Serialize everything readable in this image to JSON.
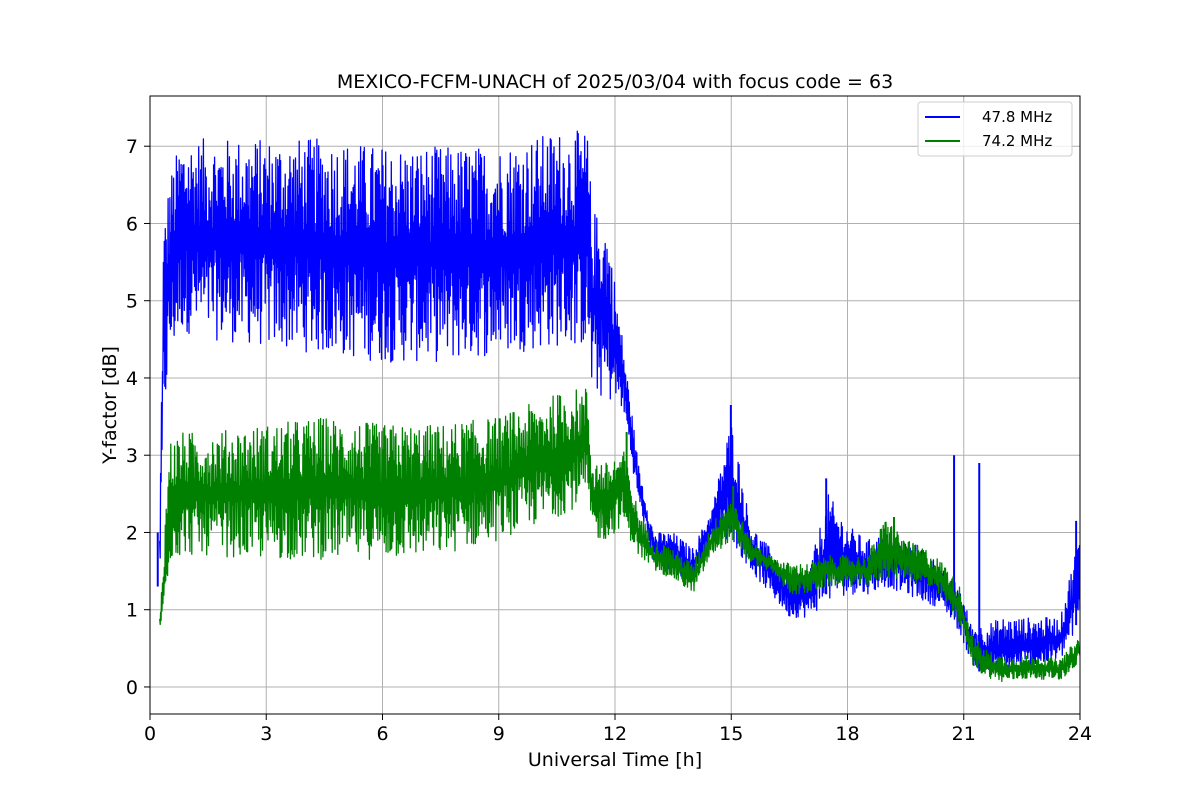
{
  "chart_data": {
    "type": "line",
    "title": "MEXICO-FCFM-UNACH of 2025/03/04 with focus code = 63",
    "xlabel": "Universal Time [h]",
    "ylabel": "Y-factor [dB]",
    "xlim": [
      0,
      24
    ],
    "ylim": [
      -0.35,
      7.65
    ],
    "xticks": [
      0,
      3,
      6,
      9,
      12,
      15,
      18,
      21,
      24
    ],
    "yticks": [
      0,
      1,
      2,
      3,
      4,
      5,
      6,
      7
    ],
    "grid": true,
    "legend_position": "top-right",
    "series": [
      {
        "name": "47.8 MHz",
        "color": "#0000ff",
        "lower": [
          [
            0.25,
            1.3
          ],
          [
            0.35,
            3.3
          ],
          [
            0.5,
            4.2
          ],
          [
            0.8,
            4.6
          ],
          [
            1.5,
            4.5
          ],
          [
            3,
            4.4
          ],
          [
            4.5,
            4.3
          ],
          [
            6,
            4.2
          ],
          [
            7.5,
            4.2
          ],
          [
            9,
            4.3
          ],
          [
            10.5,
            4.4
          ],
          [
            11.3,
            4.4
          ],
          [
            11.4,
            3.8
          ],
          [
            11.8,
            3.7
          ],
          [
            12.2,
            3.6
          ],
          [
            12.6,
            2.4
          ],
          [
            13,
            1.6
          ],
          [
            13.5,
            1.5
          ],
          [
            14,
            1.3
          ],
          [
            14.5,
            1.9
          ],
          [
            15,
            1.9
          ],
          [
            15.5,
            1.5
          ],
          [
            16,
            1.2
          ],
          [
            16.5,
            0.9
          ],
          [
            17,
            0.9
          ],
          [
            17.5,
            1.1
          ],
          [
            18,
            1.2
          ],
          [
            18.5,
            1.2
          ],
          [
            19,
            1.3
          ],
          [
            19.5,
            1.2
          ],
          [
            20,
            1.1
          ],
          [
            20.5,
            1.0
          ],
          [
            20.9,
            0.7
          ],
          [
            21.2,
            0.3
          ],
          [
            21.5,
            0.15
          ],
          [
            22,
            0.1
          ],
          [
            22.5,
            0.2
          ],
          [
            23,
            0.25
          ],
          [
            23.5,
            0.35
          ],
          [
            23.8,
            0.6
          ],
          [
            24,
            0.9
          ]
        ],
        "upper": [
          [
            0.25,
            2.0
          ],
          [
            0.35,
            6.0
          ],
          [
            0.5,
            6.6
          ],
          [
            0.8,
            7.1
          ],
          [
            1.5,
            7.1
          ],
          [
            3,
            7.1
          ],
          [
            4.5,
            7.1
          ],
          [
            6,
            7.0
          ],
          [
            7.5,
            7.0
          ],
          [
            9,
            7.0
          ],
          [
            10.5,
            7.2
          ],
          [
            11.3,
            7.2
          ],
          [
            11.4,
            6.2
          ],
          [
            11.8,
            6.0
          ],
          [
            12.2,
            4.5
          ],
          [
            12.6,
            2.9
          ],
          [
            13,
            2.0
          ],
          [
            13.5,
            2.0
          ],
          [
            14,
            1.8
          ],
          [
            14.5,
            2.3
          ],
          [
            15,
            3.5
          ],
          [
            15.5,
            2.1
          ],
          [
            16,
            1.8
          ],
          [
            16.5,
            1.5
          ],
          [
            17,
            1.5
          ],
          [
            17.5,
            2.5
          ],
          [
            18,
            2.1
          ],
          [
            18.5,
            1.9
          ],
          [
            19,
            2.0
          ],
          [
            19.5,
            1.9
          ],
          [
            20,
            1.8
          ],
          [
            20.5,
            1.5
          ],
          [
            20.9,
            1.3
          ],
          [
            21.2,
            0.8
          ],
          [
            21.5,
            0.8
          ],
          [
            22,
            0.9
          ],
          [
            22.5,
            0.9
          ],
          [
            23,
            0.9
          ],
          [
            23.5,
            0.9
          ],
          [
            23.8,
            1.6
          ],
          [
            24,
            2.0
          ]
        ],
        "spikes": [
          [
            0.2,
            1.3,
            2.0
          ],
          [
            14.99,
            2.0,
            3.65
          ],
          [
            17.45,
            1.2,
            2.7
          ],
          [
            20.75,
            1.0,
            3.0
          ],
          [
            21.4,
            0.2,
            2.9
          ],
          [
            23.9,
            0.8,
            2.15
          ]
        ]
      },
      {
        "name": "74.2 MHz",
        "color": "#008000",
        "lower": [
          [
            0.25,
            0.65
          ],
          [
            0.35,
            0.9
          ],
          [
            0.5,
            1.6
          ],
          [
            0.8,
            1.7
          ],
          [
            1.5,
            1.7
          ],
          [
            3,
            1.65
          ],
          [
            4.5,
            1.65
          ],
          [
            6,
            1.65
          ],
          [
            7.5,
            1.7
          ],
          [
            9,
            1.9
          ],
          [
            10,
            2.1
          ],
          [
            10.5,
            2.2
          ],
          [
            11.3,
            2.4
          ],
          [
            11.4,
            1.9
          ],
          [
            11.8,
            1.9
          ],
          [
            12.2,
            2.1
          ],
          [
            12.6,
            1.7
          ],
          [
            13,
            1.5
          ],
          [
            13.5,
            1.4
          ],
          [
            14,
            1.2
          ],
          [
            14.5,
            1.7
          ],
          [
            15,
            1.9
          ],
          [
            15.5,
            1.6
          ],
          [
            16,
            1.5
          ],
          [
            16.5,
            1.2
          ],
          [
            17,
            1.2
          ],
          [
            17.5,
            1.3
          ],
          [
            18,
            1.3
          ],
          [
            18.5,
            1.3
          ],
          [
            19,
            1.4
          ],
          [
            19.5,
            1.4
          ],
          [
            20,
            1.3
          ],
          [
            20.5,
            1.1
          ],
          [
            20.9,
            0.8
          ],
          [
            21.2,
            0.3
          ],
          [
            21.5,
            0.15
          ],
          [
            22,
            0.05
          ],
          [
            22.5,
            0.1
          ],
          [
            23,
            0.1
          ],
          [
            23.5,
            0.1
          ],
          [
            23.8,
            0.2
          ],
          [
            24,
            0.35
          ]
        ],
        "upper": [
          [
            0.25,
            0.9
          ],
          [
            0.35,
            1.8
          ],
          [
            0.5,
            3.2
          ],
          [
            0.8,
            3.3
          ],
          [
            1.5,
            3.3
          ],
          [
            3,
            3.4
          ],
          [
            4.5,
            3.5
          ],
          [
            6,
            3.4
          ],
          [
            7.5,
            3.4
          ],
          [
            9,
            3.5
          ],
          [
            10,
            3.7
          ],
          [
            10.5,
            3.8
          ],
          [
            11.3,
            3.9
          ],
          [
            11.4,
            3.0
          ],
          [
            11.8,
            2.9
          ],
          [
            12.2,
            3.1
          ],
          [
            12.6,
            2.3
          ],
          [
            13,
            1.9
          ],
          [
            13.5,
            1.8
          ],
          [
            14,
            1.6
          ],
          [
            14.5,
            2.1
          ],
          [
            15,
            2.5
          ],
          [
            15.5,
            1.9
          ],
          [
            16,
            1.7
          ],
          [
            16.5,
            1.6
          ],
          [
            17,
            1.6
          ],
          [
            17.5,
            1.7
          ],
          [
            18,
            1.7
          ],
          [
            18.5,
            1.7
          ],
          [
            19,
            2.2
          ],
          [
            19.5,
            1.9
          ],
          [
            20,
            1.8
          ],
          [
            20.5,
            1.6
          ],
          [
            20.9,
            1.3
          ],
          [
            21.2,
            0.7
          ],
          [
            21.5,
            0.5
          ],
          [
            22,
            0.4
          ],
          [
            22.5,
            0.4
          ],
          [
            23,
            0.4
          ],
          [
            23.5,
            0.35
          ],
          [
            23.8,
            0.55
          ],
          [
            24,
            0.65
          ]
        ],
        "spikes": [
          [
            15.05,
            1.9,
            2.6
          ],
          [
            19.2,
            1.7,
            2.2
          ],
          [
            12.3,
            2.2,
            3.3
          ]
        ]
      }
    ]
  }
}
